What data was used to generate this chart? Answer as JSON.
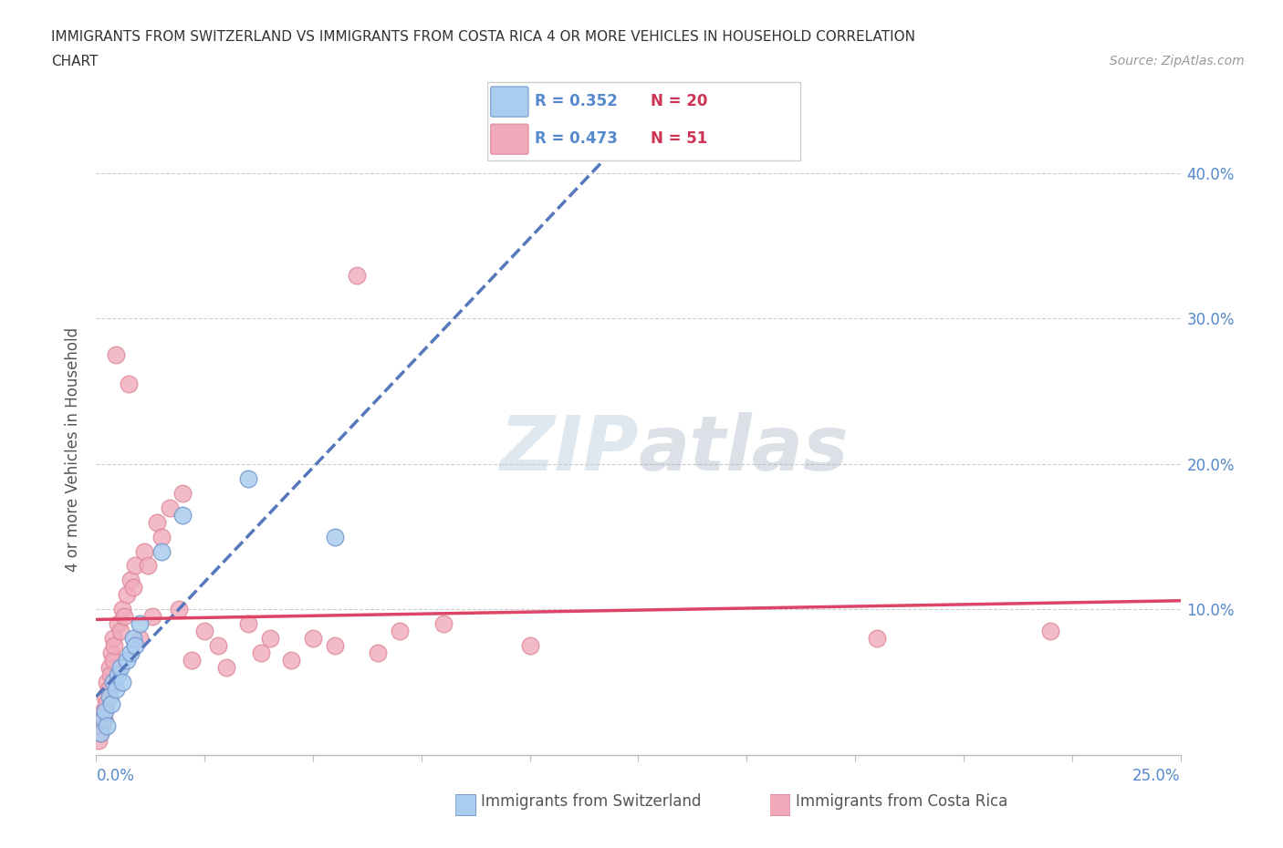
{
  "title_line1": "IMMIGRANTS FROM SWITZERLAND VS IMMIGRANTS FROM COSTA RICA 4 OR MORE VEHICLES IN HOUSEHOLD CORRELATION",
  "title_line2": "CHART",
  "source": "Source: ZipAtlas.com",
  "ylabel": "4 or more Vehicles in Household",
  "switzerland_color": "#aaccee",
  "switzerland_edge": "#7799cc",
  "costa_rica_color": "#f0aabb",
  "costa_rica_edge": "#dd8899",
  "regression_switzerland_color": "#5577bb",
  "regression_costa_rica_color": "#dd4466",
  "watermark_color": "#ccddf0",
  "xlim": [
    0.0,
    25.0
  ],
  "ylim": [
    0.0,
    42.0
  ],
  "yaxis_ticks": [
    10.0,
    20.0,
    30.0,
    40.0
  ],
  "xaxis_ticks": [
    0,
    2.5,
    5.0,
    7.5,
    10.0,
    12.5,
    15.0,
    17.5,
    20.0,
    22.5,
    25.0
  ],
  "legend_sw_r": "R = 0.352",
  "legend_sw_n": "N = 20",
  "legend_cr_r": "R = 0.473",
  "legend_cr_n": "N = 51",
  "switzerland_scatter": [
    [
      0.1,
      1.5
    ],
    [
      0.15,
      2.5
    ],
    [
      0.2,
      3.0
    ],
    [
      0.25,
      2.0
    ],
    [
      0.3,
      4.0
    ],
    [
      0.35,
      3.5
    ],
    [
      0.4,
      5.0
    ],
    [
      0.45,
      4.5
    ],
    [
      0.5,
      5.5
    ],
    [
      0.55,
      6.0
    ],
    [
      0.6,
      5.0
    ],
    [
      0.7,
      6.5
    ],
    [
      0.8,
      7.0
    ],
    [
      0.85,
      8.0
    ],
    [
      0.9,
      7.5
    ],
    [
      1.0,
      9.0
    ],
    [
      1.5,
      14.0
    ],
    [
      2.0,
      16.5
    ],
    [
      3.5,
      19.0
    ],
    [
      5.5,
      15.0
    ]
  ],
  "costa_rica_scatter": [
    [
      0.05,
      1.0
    ],
    [
      0.1,
      1.5
    ],
    [
      0.12,
      2.0
    ],
    [
      0.15,
      3.0
    ],
    [
      0.18,
      2.5
    ],
    [
      0.2,
      4.0
    ],
    [
      0.22,
      3.5
    ],
    [
      0.25,
      5.0
    ],
    [
      0.28,
      4.5
    ],
    [
      0.3,
      6.0
    ],
    [
      0.32,
      5.5
    ],
    [
      0.35,
      7.0
    ],
    [
      0.38,
      6.5
    ],
    [
      0.4,
      8.0
    ],
    [
      0.42,
      7.5
    ],
    [
      0.45,
      27.5
    ],
    [
      0.5,
      9.0
    ],
    [
      0.55,
      8.5
    ],
    [
      0.6,
      10.0
    ],
    [
      0.65,
      9.5
    ],
    [
      0.7,
      11.0
    ],
    [
      0.75,
      25.5
    ],
    [
      0.8,
      12.0
    ],
    [
      0.85,
      11.5
    ],
    [
      0.9,
      13.0
    ],
    [
      1.0,
      8.0
    ],
    [
      1.1,
      14.0
    ],
    [
      1.2,
      13.0
    ],
    [
      1.3,
      9.5
    ],
    [
      1.4,
      16.0
    ],
    [
      1.5,
      15.0
    ],
    [
      1.7,
      17.0
    ],
    [
      1.9,
      10.0
    ],
    [
      2.0,
      18.0
    ],
    [
      2.2,
      6.5
    ],
    [
      2.5,
      8.5
    ],
    [
      2.8,
      7.5
    ],
    [
      3.0,
      6.0
    ],
    [
      3.5,
      9.0
    ],
    [
      3.8,
      7.0
    ],
    [
      4.0,
      8.0
    ],
    [
      4.5,
      6.5
    ],
    [
      5.0,
      8.0
    ],
    [
      5.5,
      7.5
    ],
    [
      6.0,
      33.0
    ],
    [
      6.5,
      7.0
    ],
    [
      7.0,
      8.5
    ],
    [
      8.0,
      9.0
    ],
    [
      10.0,
      7.5
    ],
    [
      18.0,
      8.0
    ],
    [
      22.0,
      8.5
    ]
  ]
}
